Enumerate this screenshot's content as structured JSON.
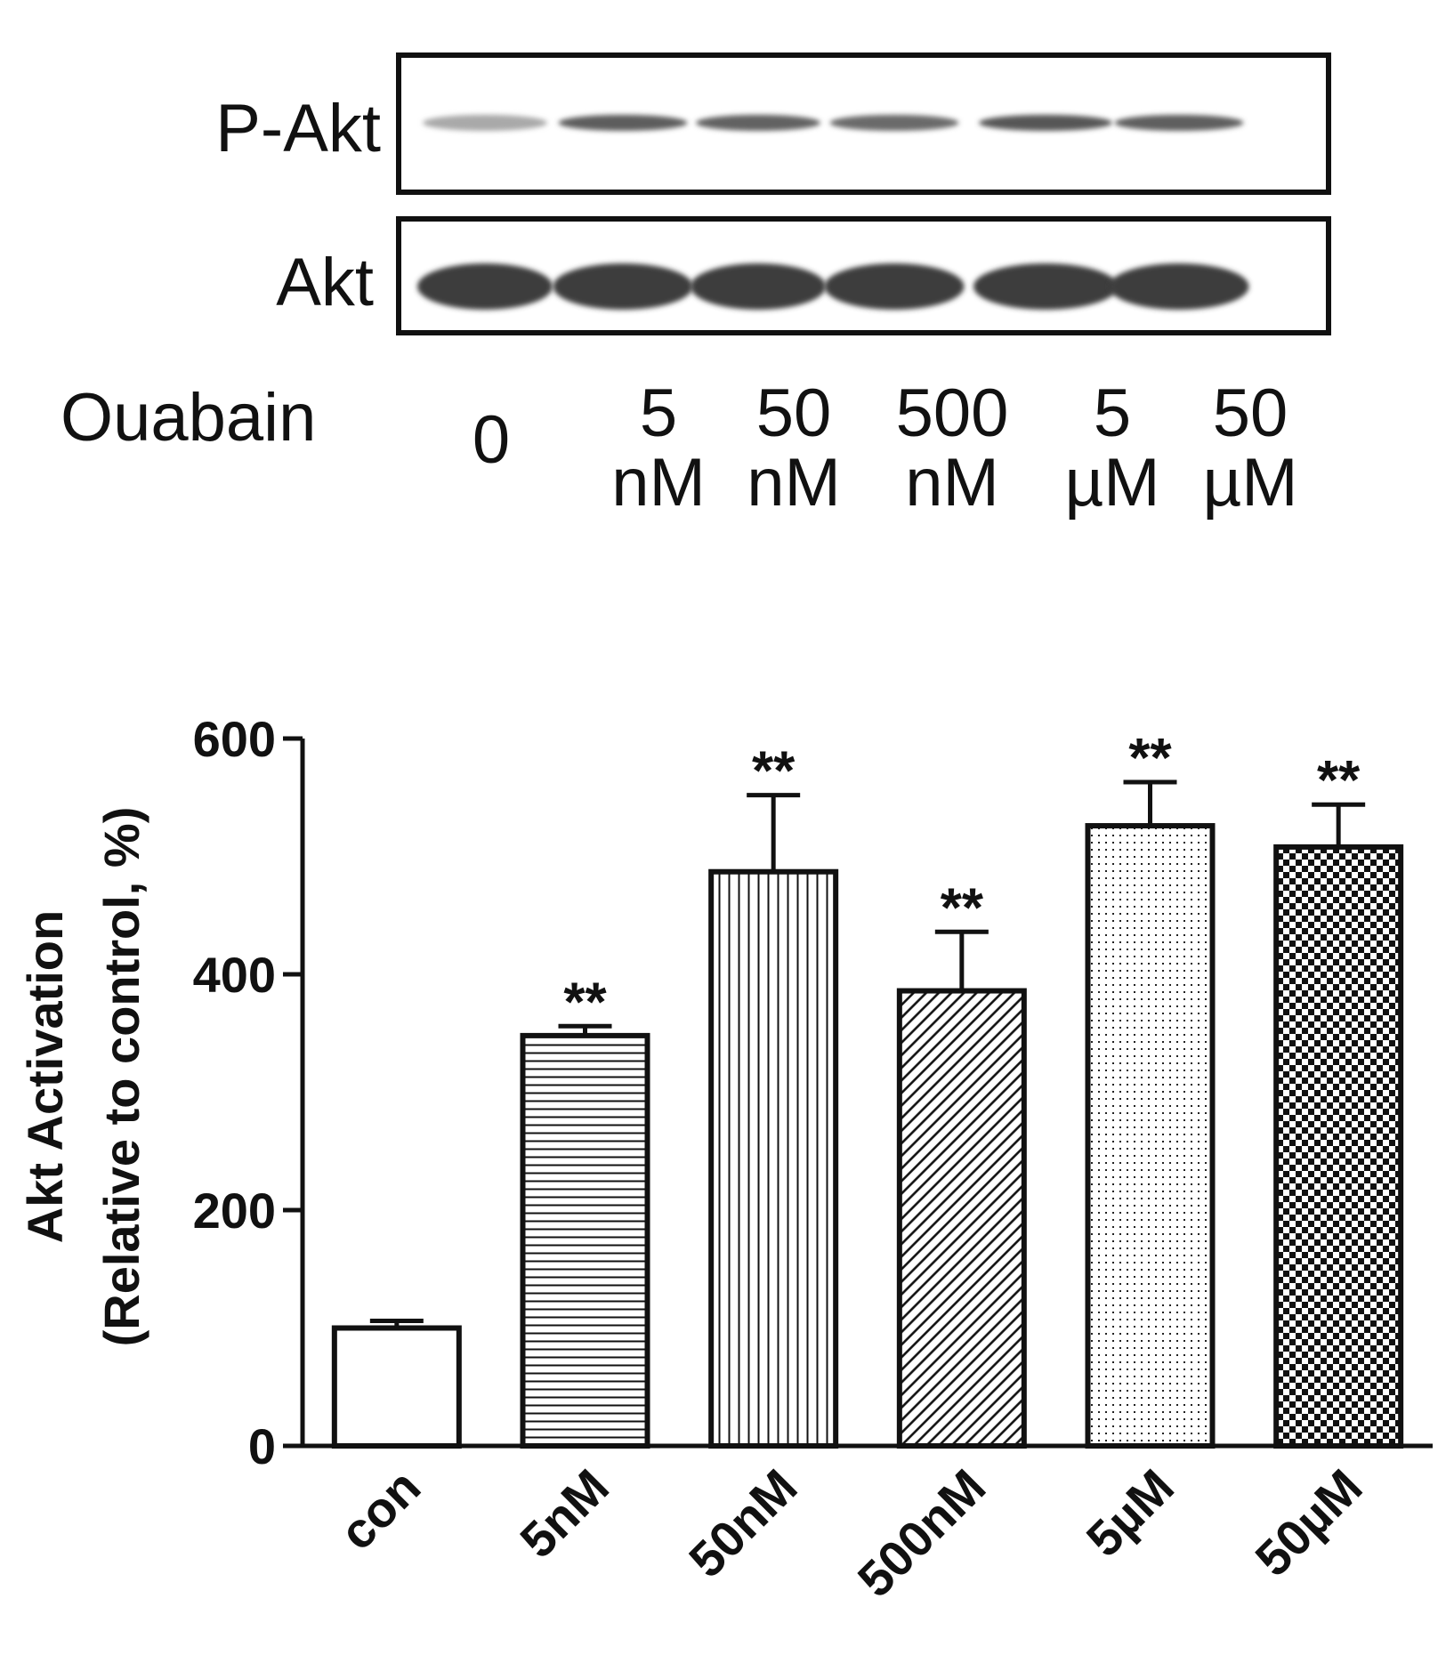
{
  "blot": {
    "rows": [
      {
        "label": "P-Akt",
        "band_intensity": [
          0.35,
          0.75,
          0.72,
          0.68,
          0.78,
          0.74
        ]
      },
      {
        "label": "Akt",
        "band_intensity": [
          1.0,
          1.0,
          1.0,
          1.0,
          1.0,
          1.0
        ]
      }
    ],
    "treatment_label": "Ouabain",
    "lanes": [
      {
        "value": "0",
        "unit": ""
      },
      {
        "value": "5",
        "unit": "nM"
      },
      {
        "value": "50",
        "unit": "nM"
      },
      {
        "value": "500",
        "unit": "nM"
      },
      {
        "value": "5",
        "unit": "µM"
      },
      {
        "value": "50",
        "unit": "µM"
      }
    ]
  },
  "chart_data": {
    "type": "bar",
    "categories": [
      "con",
      "5nM",
      "50nM",
      "500nM",
      "5µM",
      "50µM"
    ],
    "values": [
      100,
      348,
      487,
      386,
      526,
      508
    ],
    "error": [
      6,
      8,
      65,
      50,
      37,
      36
    ],
    "significance": [
      "",
      "**",
      "**",
      "**",
      "**",
      "**"
    ],
    "patterns": [
      "none",
      "horizontal-lines",
      "vertical-lines",
      "diagonal-lines",
      "dots",
      "checker"
    ],
    "ylabel_line1": "Akt Activation",
    "ylabel_line2": "(Relative to control, %)",
    "ylim": [
      0,
      600
    ],
    "yticks": [
      0,
      200,
      400,
      600
    ],
    "grid": false
  }
}
